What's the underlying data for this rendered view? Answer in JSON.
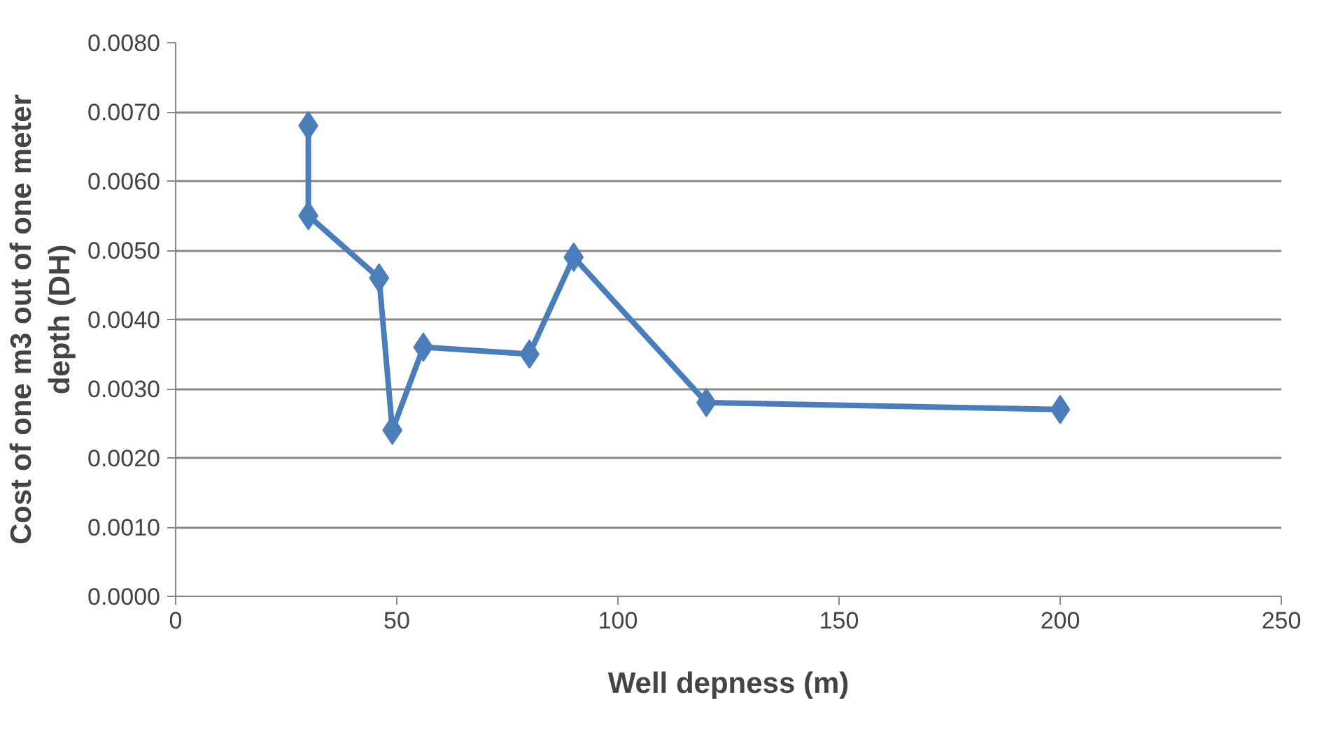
{
  "chart_data": {
    "type": "line",
    "xlabel": "Well depness (m)",
    "ylabel": "Cost of one m3 out of one meter depth (DH)",
    "x": [
      30,
      30,
      46,
      49,
      56,
      80,
      90,
      120,
      200
    ],
    "series": [
      {
        "color": "#4a7ebb",
        "values": [
          0.0068,
          0.0055,
          0.0046,
          0.0024,
          0.0036,
          0.0035,
          0.0049,
          0.0028,
          0.0027
        ]
      }
    ],
    "xlim": [
      0,
      250
    ],
    "xticks": [
      0,
      50,
      100,
      150,
      200,
      250
    ],
    "ylim": [
      0,
      0.008
    ],
    "yticks": [
      {
        "value": 0,
        "label": "0.0000"
      },
      {
        "value": 0.001,
        "label": "0.0010"
      },
      {
        "value": 0.002,
        "label": "0.0020"
      },
      {
        "value": 0.003,
        "label": "0.0030"
      },
      {
        "value": 0.004,
        "label": "0.0040"
      },
      {
        "value": 0.005,
        "label": "0.0050"
      },
      {
        "value": 0.006,
        "label": "0.0060"
      },
      {
        "value": 0.007,
        "label": "0.0070"
      },
      {
        "value": 0.008,
        "label": "0.0080"
      }
    ],
    "grid": "y",
    "marker": "diamond",
    "line_style": "solid"
  }
}
